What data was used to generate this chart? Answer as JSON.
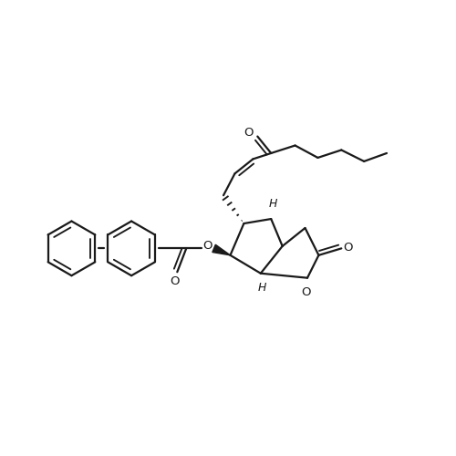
{
  "bg_color": "#ffffff",
  "line_color": "#1a1a1a",
  "lw": 1.6,
  "figsize": [
    5.0,
    5.0
  ],
  "dpi": 100,
  "xlim": [
    0,
    10
  ],
  "ylim": [
    0,
    10
  ]
}
